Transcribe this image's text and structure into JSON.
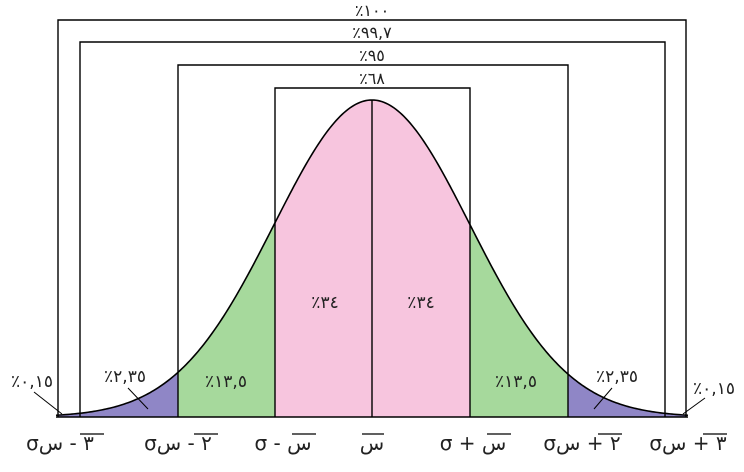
{
  "bracket_labels": {
    "b3": "٪١٠٠",
    "b3b": "٪٩٩,٧",
    "b2": "٪٩٥",
    "b1": "٪٦٨"
  },
  "region_labels": {
    "center_left": "٪٣٤",
    "center_right": "٪٣٤",
    "green_left": "٪١٣,٥",
    "green_right": "٪١٣,٥",
    "purple_left": "٪٢,٣٥",
    "purple_right": "٪٢,٣٥",
    "tail_left": "٪٠,١٥",
    "tail_right": "٪٠,١٥"
  },
  "axis": {
    "minus3": "σ٣ - س",
    "minus2": "σ٢ - س",
    "minus1": "σ - س",
    "mean": "س",
    "plus1": "σ + س",
    "plus2": "σ٢ + س",
    "plus3": "σ٣ + س"
  },
  "colors": {
    "center": "#f7c5de",
    "green": "#a6d99c",
    "purple": "#8f86c6",
    "line": "#000000"
  }
}
